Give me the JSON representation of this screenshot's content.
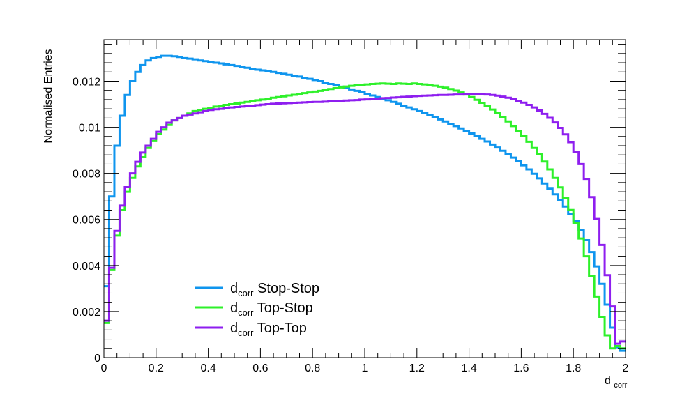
{
  "chart_data": {
    "type": "line",
    "style": "step-histogram",
    "title": "",
    "xlabel": {
      "main": "d",
      "sub": "corr"
    },
    "ylabel": "Normalised Entries",
    "xlim": [
      0,
      2
    ],
    "ylim": [
      0,
      0.0138
    ],
    "x_ticks": [
      0,
      0.2,
      0.4,
      0.6,
      0.8,
      1,
      1.2,
      1.4,
      1.6,
      1.8,
      2
    ],
    "x_tick_labels": [
      "0",
      "0.2",
      "0.4",
      "0.6",
      "0.8",
      "1",
      "1.2",
      "1.4",
      "1.6",
      "1.8",
      "2"
    ],
    "y_ticks": [
      0,
      0.002,
      0.004,
      0.006,
      0.008,
      0.01,
      0.012
    ],
    "y_tick_labels": [
      "0",
      "0.002",
      "0.004",
      "0.006",
      "0.008",
      "0.01",
      "0.012"
    ],
    "grid": false,
    "legend_position": "bottom-left",
    "bin_width": 0.02,
    "x_bin_edges_start": 0,
    "series": [
      {
        "name": "Stop-Stop",
        "label_main": "d",
        "label_sub": "corr",
        "label_rest": " Stop-Stop",
        "color": "#0f95ee",
        "values": [
          0.0031,
          0.007,
          0.0092,
          0.0105,
          0.0114,
          0.012,
          0.0124,
          0.0127,
          0.0129,
          0.013,
          0.01305,
          0.0131,
          0.0131,
          0.01308,
          0.01305,
          0.013,
          0.01298,
          0.01295,
          0.0129,
          0.01287,
          0.01284,
          0.0128,
          0.01277,
          0.01273,
          0.0127,
          0.01266,
          0.01262,
          0.01258,
          0.01254,
          0.0125,
          0.01247,
          0.01244,
          0.0124,
          0.01236,
          0.01232,
          0.01228,
          0.01224,
          0.0122,
          0.01215,
          0.0121,
          0.01205,
          0.012,
          0.01194,
          0.01188,
          0.01182,
          0.01176,
          0.0117,
          0.01164,
          0.01158,
          0.01152,
          0.01145,
          0.01138,
          0.01131,
          0.01124,
          0.01117,
          0.0111,
          0.01102,
          0.01094,
          0.01086,
          0.01078,
          0.0107,
          0.01061,
          0.01052,
          0.01043,
          0.01034,
          0.01025,
          0.01015,
          0.01005,
          0.00995,
          0.00984,
          0.00973,
          0.00962,
          0.0095,
          0.00938,
          0.00925,
          0.00912,
          0.00898,
          0.00884,
          0.00868,
          0.00852,
          0.00835,
          0.00817,
          0.00798,
          0.00778,
          0.00756,
          0.00733,
          0.00709,
          0.00683,
          0.00656,
          0.00625,
          0.00592,
          0.00554,
          0.0051,
          0.00458,
          0.00396,
          0.0032,
          0.0023,
          0.0013,
          0.00045,
          0.0003
        ]
      },
      {
        "name": "Top-Stop",
        "label_main": "d",
        "label_sub": "corr",
        "label_rest": " Top-Stop",
        "color": "#2ef02a",
        "values": [
          0.0015,
          0.0038,
          0.0053,
          0.0064,
          0.0072,
          0.0078,
          0.0083,
          0.0087,
          0.0091,
          0.0094,
          0.0097,
          0.0099,
          0.0101,
          0.0103,
          0.0104,
          0.0105,
          0.0106,
          0.0107,
          0.01075,
          0.0108,
          0.01085,
          0.0109,
          0.01093,
          0.01097,
          0.011,
          0.01103,
          0.01107,
          0.0111,
          0.01114,
          0.01117,
          0.0112,
          0.01124,
          0.01128,
          0.01131,
          0.01134,
          0.01138,
          0.01141,
          0.01145,
          0.01148,
          0.01151,
          0.01155,
          0.01158,
          0.01162,
          0.01166,
          0.0117,
          0.01173,
          0.01177,
          0.0118,
          0.01182,
          0.01184,
          0.01186,
          0.01188,
          0.01189,
          0.0119,
          0.01189,
          0.01188,
          0.0119,
          0.01189,
          0.01188,
          0.0119,
          0.01188,
          0.01186,
          0.01183,
          0.0118,
          0.01176,
          0.01172,
          0.01166,
          0.01159,
          0.01151,
          0.01142,
          0.01131,
          0.01119,
          0.01106,
          0.01092,
          0.01077,
          0.01061,
          0.01044,
          0.01025,
          0.01005,
          0.00984,
          0.00961,
          0.00937,
          0.0091,
          0.00882,
          0.00851,
          0.00817,
          0.0078,
          0.00739,
          0.00693,
          0.00641,
          0.00583,
          0.00517,
          0.0044,
          0.00355,
          0.00265,
          0.00177,
          0.00097,
          0.0004,
          0.0005,
          0.0004
        ]
      },
      {
        "name": "Top-Top",
        "label_main": "d",
        "label_sub": "corr",
        "label_rest": " Top-Top",
        "color": "#8e1eef",
        "values": [
          0.0016,
          0.0039,
          0.0055,
          0.0066,
          0.0074,
          0.008,
          0.0085,
          0.0089,
          0.0092,
          0.0095,
          0.0098,
          0.01,
          0.0102,
          0.0103,
          0.0104,
          0.0105,
          0.01055,
          0.0106,
          0.01065,
          0.0107,
          0.01075,
          0.01078,
          0.0108,
          0.01083,
          0.01086,
          0.01088,
          0.0109,
          0.01092,
          0.01094,
          0.01096,
          0.01098,
          0.011,
          0.01102,
          0.01103,
          0.01104,
          0.01105,
          0.01106,
          0.01107,
          0.01108,
          0.01109,
          0.0111,
          0.0111,
          0.01111,
          0.01112,
          0.01113,
          0.01114,
          0.01116,
          0.01117,
          0.01118,
          0.0112,
          0.01121,
          0.01123,
          0.01124,
          0.01126,
          0.01127,
          0.01129,
          0.0113,
          0.01132,
          0.01133,
          0.01135,
          0.01136,
          0.01137,
          0.01138,
          0.01139,
          0.0114,
          0.0114,
          0.01141,
          0.01142,
          0.01142,
          0.01143,
          0.01143,
          0.01144,
          0.01143,
          0.01142,
          0.0114,
          0.01137,
          0.01133,
          0.01128,
          0.01122,
          0.01115,
          0.01107,
          0.01097,
          0.01086,
          0.01073,
          0.01058,
          0.01041,
          0.01021,
          0.00997,
          0.00969,
          0.00935,
          0.00893,
          0.0084,
          0.00776,
          0.00697,
          0.00602,
          0.00489,
          0.00358,
          0.00222,
          0.0006,
          0.0007
        ]
      }
    ]
  }
}
